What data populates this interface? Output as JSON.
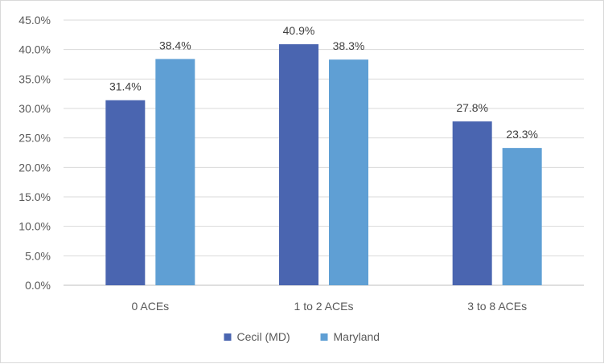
{
  "chart_data": {
    "type": "bar",
    "categories": [
      "0 ACEs",
      "1 to 2 ACEs",
      "3 to 8 ACEs"
    ],
    "series": [
      {
        "name": "Cecil (MD)",
        "values": [
          31.4,
          40.9,
          27.8
        ],
        "labels": [
          "31.4%",
          "40.9%",
          "27.8%"
        ],
        "color": "#4a65b0"
      },
      {
        "name": "Maryland",
        "values": [
          38.4,
          38.3,
          23.3
        ],
        "labels": [
          "38.4%",
          "38.3%",
          "23.3%"
        ],
        "color": "#5f9fd4"
      }
    ],
    "ylim": [
      0,
      45
    ],
    "yticks": [
      "0.0%",
      "5.0%",
      "10.0%",
      "15.0%",
      "20.0%",
      "25.0%",
      "30.0%",
      "35.0%",
      "40.0%",
      "45.0%"
    ],
    "ytick_values": [
      0,
      5,
      10,
      15,
      20,
      25,
      30,
      35,
      40,
      45
    ],
    "grid": true,
    "legend_position": "bottom",
    "title": "",
    "xlabel": "",
    "ylabel": ""
  }
}
